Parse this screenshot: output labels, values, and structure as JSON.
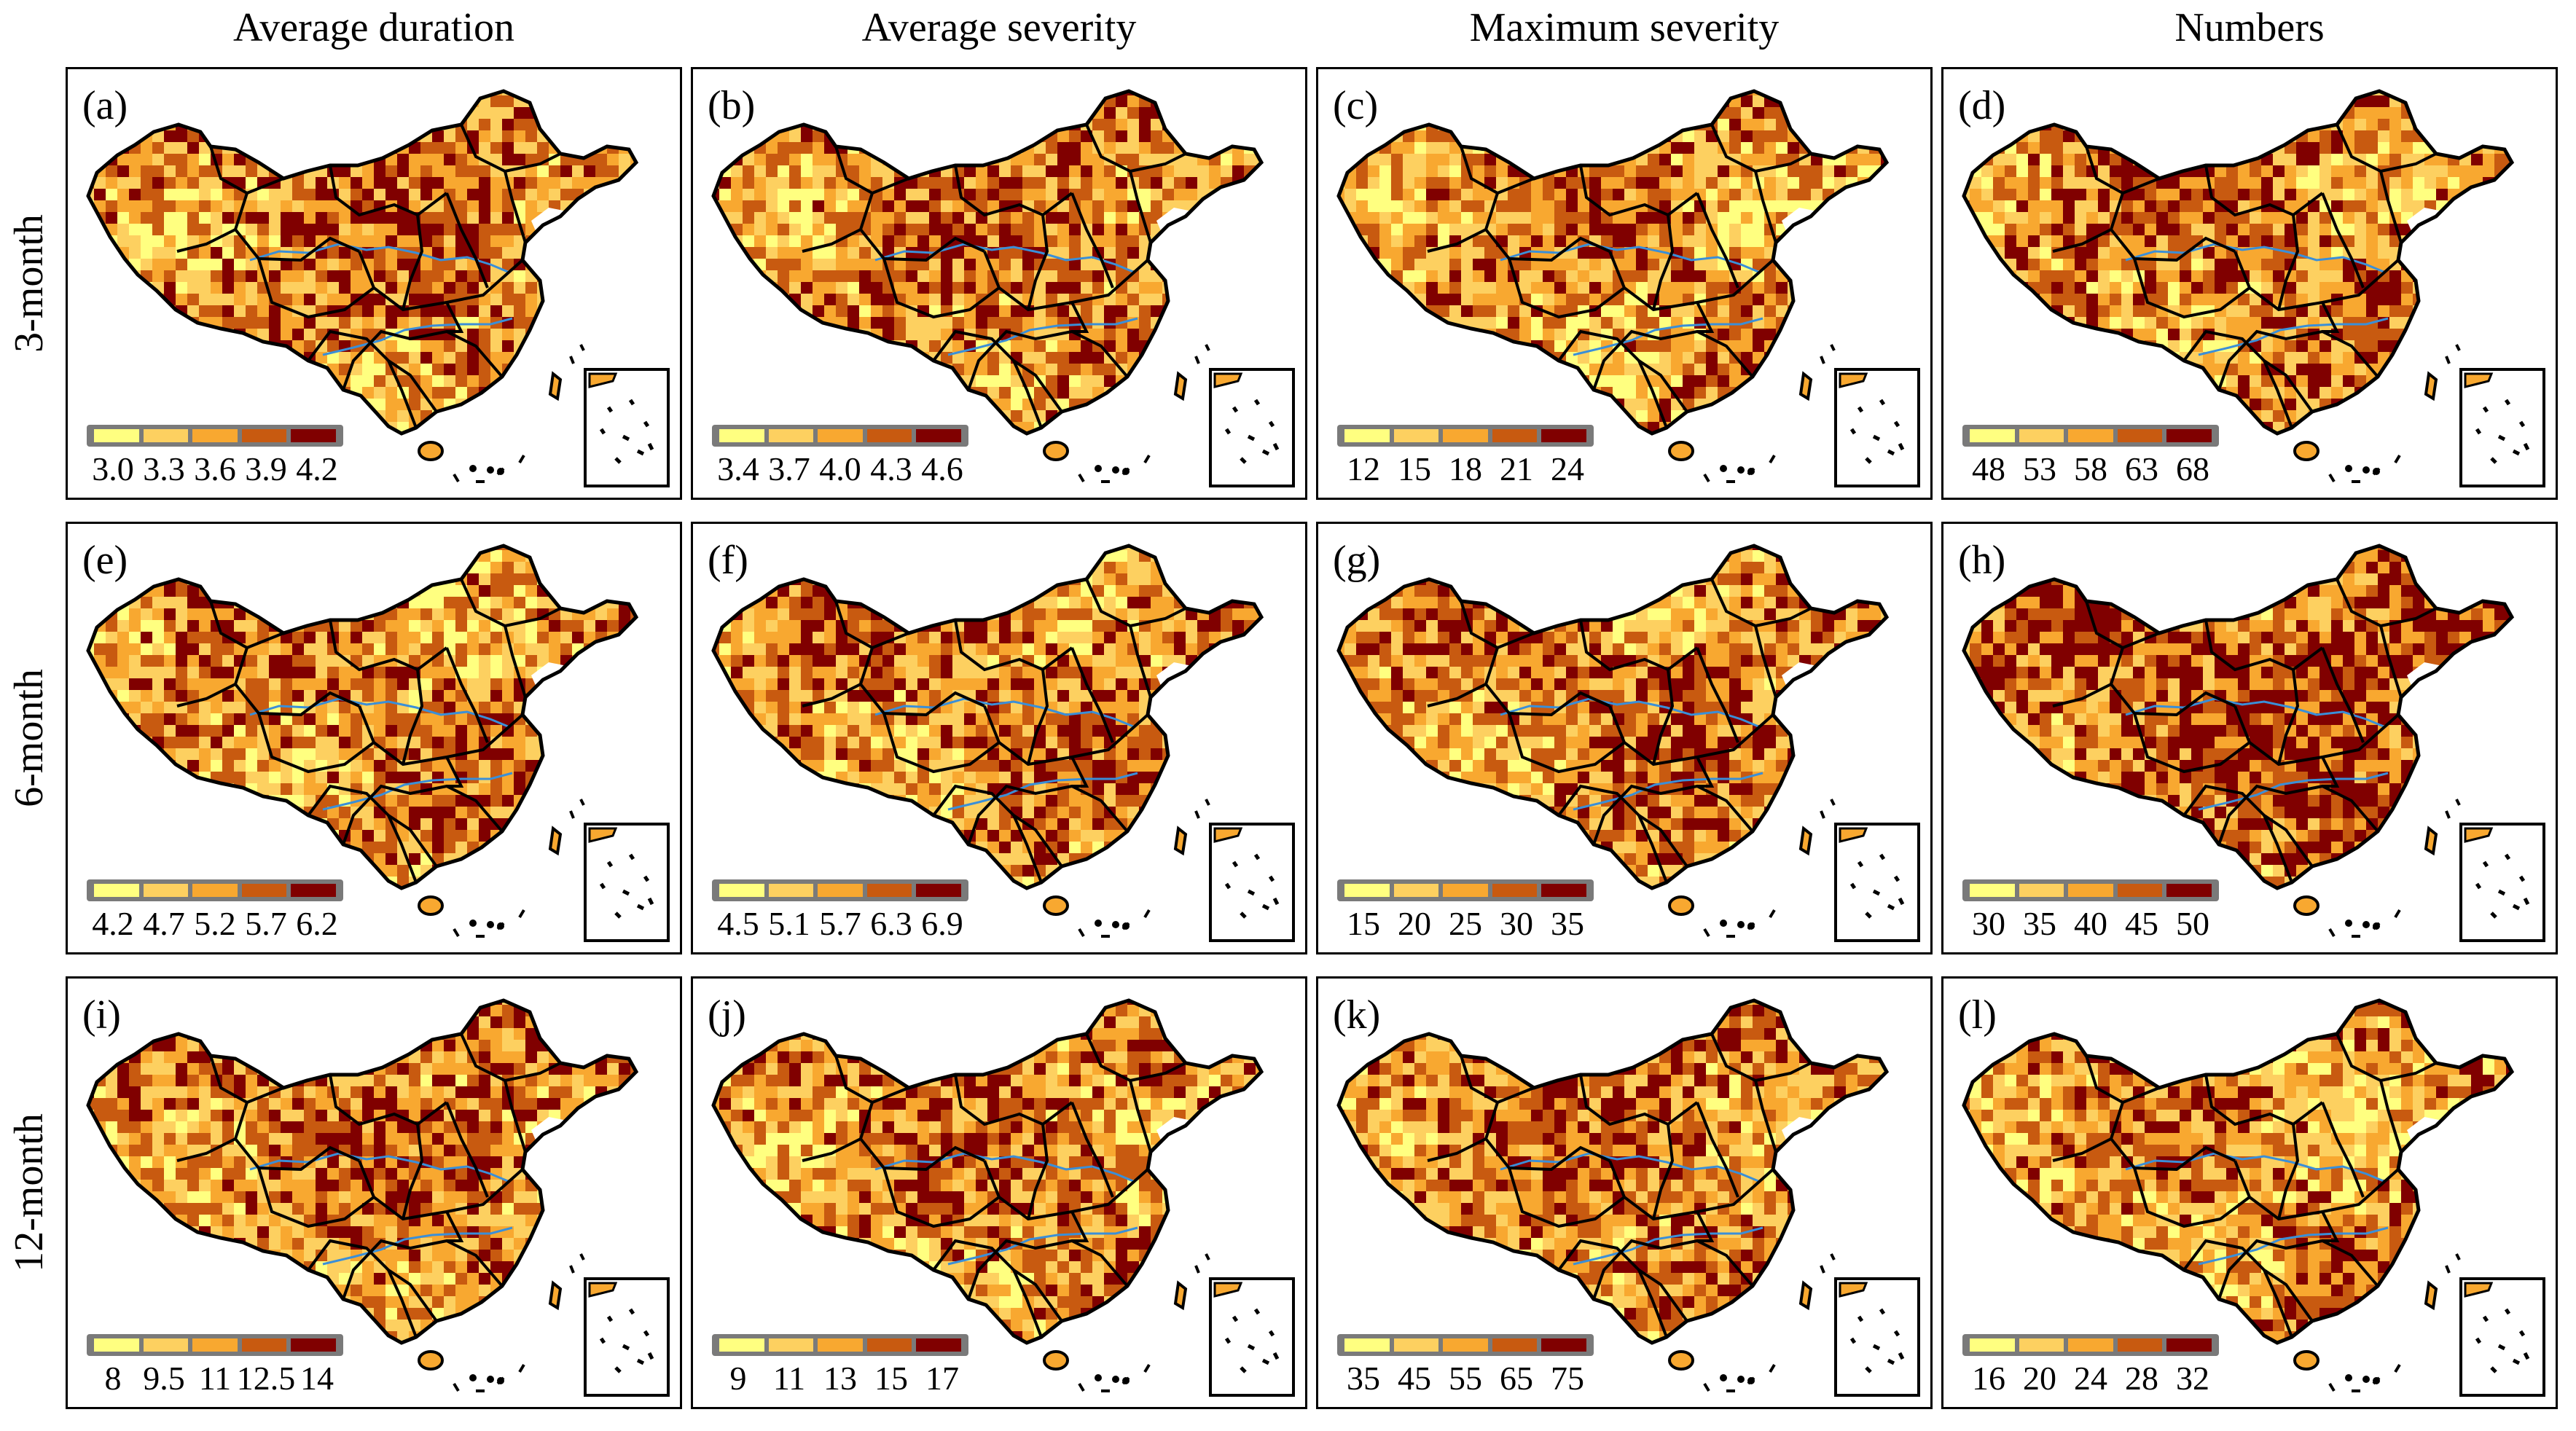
{
  "column_titles": [
    "Average duration",
    "Average severity",
    "Maximum severity",
    "Numbers"
  ],
  "row_titles": [
    "3-month",
    "6-month",
    "12-month"
  ],
  "colors": [
    "#ffff80",
    "#fdd060",
    "#f8a830",
    "#c85a10",
    "#800000"
  ],
  "panels": [
    {
      "label": "(a)",
      "ticks": [
        "3.0",
        "3.3",
        "3.6",
        "3.9",
        "4.2"
      ],
      "level": 0.55
    },
    {
      "label": "(b)",
      "ticks": [
        "3.4",
        "3.7",
        "4.0",
        "4.3",
        "4.6"
      ],
      "level": 0.55
    },
    {
      "label": "(c)",
      "ticks": [
        "12",
        "15",
        "18",
        "21",
        "24"
      ],
      "level": 0.5
    },
    {
      "label": "(d)",
      "ticks": [
        "48",
        "53",
        "58",
        "63",
        "68"
      ],
      "level": 0.55
    },
    {
      "label": "(e)",
      "ticks": [
        "4.2",
        "4.7",
        "5.2",
        "5.7",
        "6.2"
      ],
      "level": 0.5
    },
    {
      "label": "(f)",
      "ticks": [
        "4.5",
        "5.1",
        "5.7",
        "6.3",
        "6.9"
      ],
      "level": 0.55
    },
    {
      "label": "(g)",
      "ticks": [
        "15",
        "20",
        "25",
        "30",
        "35"
      ],
      "level": 0.55
    },
    {
      "label": "(h)",
      "ticks": [
        "30",
        "35",
        "40",
        "45",
        "50"
      ],
      "level": 0.75
    },
    {
      "label": "(i)",
      "ticks": [
        "8",
        "9.5",
        "11",
        "12.5",
        "14"
      ],
      "level": 0.55
    },
    {
      "label": "(j)",
      "ticks": [
        "9",
        "11",
        "13",
        "15",
        "17"
      ],
      "level": 0.5
    },
    {
      "label": "(k)",
      "ticks": [
        "35",
        "45",
        "55",
        "65",
        "75"
      ],
      "level": 0.55
    },
    {
      "label": "(l)",
      "ticks": [
        "16",
        "20",
        "24",
        "28",
        "32"
      ],
      "level": 0.45
    }
  ]
}
